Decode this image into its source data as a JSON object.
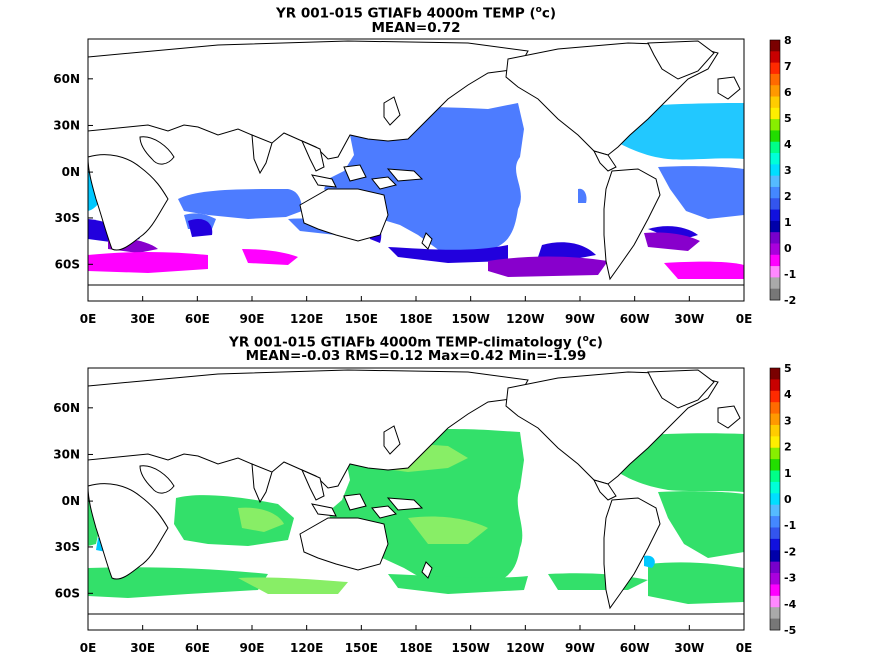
{
  "panels": [
    {
      "id": "top",
      "title": "YR 001-015 GTIAFb 4000m TEMP (",
      "title_unit_o": "o",
      "title_unit_c": "c)",
      "stats": "MEAN=0.72",
      "colorbar": {
        "labels": [
          "8",
          "7",
          "6",
          "5",
          "4",
          "3",
          "2",
          "1",
          "0",
          "-1",
          "-2"
        ],
        "colors": [
          "#7a0000",
          "#c80000",
          "#ff2a00",
          "#ff6a00",
          "#ff9900",
          "#ffcc00",
          "#ffee00",
          "#88ee00",
          "#22dd00",
          "#00ff88",
          "#00ffd8",
          "#00dfff",
          "#55bbff",
          "#4488ff",
          "#3355ee",
          "#1111dd",
          "#0000aa",
          "#7700cc",
          "#aa00dd",
          "#ff00ff",
          "#ff88ff",
          "#aaaaaa",
          "#777777"
        ]
      }
    },
    {
      "id": "bottom",
      "title": "YR 001-015 GTIAFb 4000m TEMP-climatology (",
      "title_unit_o": "o",
      "title_unit_c": "c)",
      "stats": "MEAN=-0.03   RMS=0.12   Max=0.42   Min=-1.99",
      "colorbar": {
        "labels": [
          "5",
          "4",
          "3",
          "2",
          "1",
          "0",
          "-1",
          "-2",
          "-3",
          "-4",
          "-5"
        ],
        "colors": [
          "#7a0000",
          "#c80000",
          "#ff2a00",
          "#ff6a00",
          "#ff9900",
          "#ffcc00",
          "#ffee00",
          "#88ee00",
          "#22dd00",
          "#00ff88",
          "#00ffd8",
          "#00dfff",
          "#55bbff",
          "#4488ff",
          "#3355ee",
          "#1111dd",
          "#0000aa",
          "#7700cc",
          "#aa00dd",
          "#ff00ff",
          "#ff88ff",
          "#aaaaaa",
          "#777777"
        ]
      }
    }
  ],
  "axes": {
    "lat_labels": [
      "60N",
      "30N",
      "0N",
      "30S",
      "60S"
    ],
    "lon_labels": [
      "0E",
      "30E",
      "60E",
      "90E",
      "120E",
      "150E",
      "180E",
      "150W",
      "120W",
      "90W",
      "60W",
      "30W",
      "0E"
    ]
  }
}
